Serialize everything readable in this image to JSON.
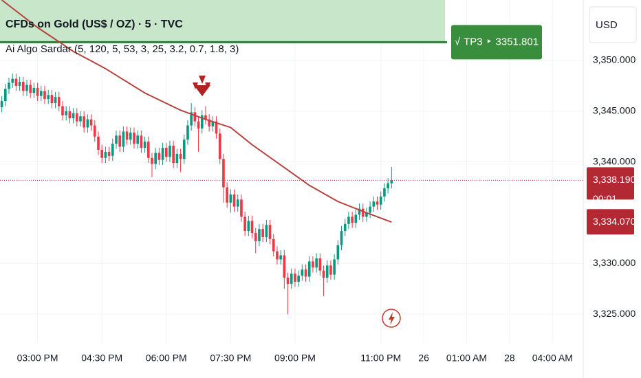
{
  "chart_data": {
    "type": "candlestick",
    "title": "CFDs on Gold (US$ / OZ) · 5 · TVC",
    "indicator": "Ai Algo Sardar (5, 120, 5, 53, 3, 25, 3.2, 0.7, 1.8, 3)",
    "currency": "USD",
    "up_color": "#089981",
    "down_color": "#f23645",
    "xlim": [
      -0.5,
      162.6
    ],
    "ylim": [
      3322.1,
      3355.96
    ],
    "xticks": [
      {
        "value": 10,
        "label": "03:00 PM"
      },
      {
        "value": 28,
        "label": "04:30 PM"
      },
      {
        "value": 46,
        "label": "06:00 PM"
      },
      {
        "value": 64,
        "label": "07:30 PM"
      },
      {
        "value": 82,
        "label": "09:00 PM"
      },
      {
        "value": 106,
        "label": "11:00 PM"
      },
      {
        "value": 118,
        "label": "26"
      },
      {
        "value": 130,
        "label": "01:00 AM"
      },
      {
        "value": 142,
        "label": "28"
      },
      {
        "value": 154,
        "label": "04:00 AM"
      }
    ],
    "yticks": [
      {
        "value": 3325,
        "label": "3,325.000"
      },
      {
        "value": 3330,
        "label": "3,330.000"
      },
      {
        "value": 3340,
        "label": "3,340.000"
      },
      {
        "value": 3345,
        "label": "3,345.000"
      },
      {
        "value": 3350,
        "label": "3,350.000"
      }
    ],
    "open": [
      3345.4,
      3346.0,
      3347.2,
      3347.8,
      3348.2,
      3347.5,
      3347.9,
      3347.0,
      3347.6,
      3346.8,
      3347.3,
      3346.5,
      3347.0,
      3346.2,
      3346.6,
      3345.8,
      3346.4,
      3345.5,
      3344.6,
      3345.0,
      3344.3,
      3344.8,
      3344.0,
      3344.5,
      3343.4,
      3344.2,
      3343.6,
      3342.5,
      3341.2,
      3340.4,
      3341.0,
      3340.6,
      3341.8,
      3342.6,
      3341.5,
      3343.0,
      3342.2,
      3342.9,
      3341.8,
      3342.6,
      3341.4,
      3342.0,
      3340.4,
      3339.8,
      3340.9,
      3340.2,
      3341.4,
      3340.5,
      3341.6,
      3339.9,
      3340.8,
      3340.3,
      3342.2,
      3343.6,
      3344.9,
      3344.0,
      3343.3,
      3344.6,
      3344.2,
      3343.5,
      3344.0,
      3342.8,
      3340.3,
      3337.5,
      3336.0,
      3336.8,
      3335.6,
      3336.3,
      3334.6,
      3333.2,
      3334.2,
      3333.0,
      3332.2,
      3333.4,
      3332.6,
      3333.8,
      3332.4,
      3331.2,
      3330.4,
      3330.8,
      3328.6,
      3328.0,
      3329.0,
      3328.2,
      3328.8,
      3329.4,
      3328.7,
      3330.2,
      3329.6,
      3330.5,
      3329.3,
      3328.6,
      3329.8,
      3328.9,
      3330.4,
      3331.8,
      3333.2,
      3333.9,
      3334.6,
      3334.0,
      3334.8,
      3335.4,
      3334.6,
      3335.0,
      3335.6,
      3336.1,
      3335.8,
      3336.6,
      3337.4,
      3337.9
    ],
    "high": [
      3346.5,
      3347.7,
      3348.3,
      3348.7,
      3348.7,
      3348.4,
      3348.4,
      3348.1,
      3348.1,
      3347.8,
      3347.8,
      3347.5,
      3347.5,
      3347.1,
      3347.1,
      3346.9,
      3346.9,
      3346.0,
      3345.5,
      3345.5,
      3345.3,
      3345.3,
      3345.0,
      3345.0,
      3344.7,
      3344.7,
      3344.1,
      3343.0,
      3341.7,
      3341.5,
      3341.5,
      3342.3,
      3343.1,
      3343.1,
      3343.5,
      3343.5,
      3343.4,
      3343.4,
      3343.1,
      3343.1,
      3342.5,
      3342.5,
      3340.9,
      3341.4,
      3341.4,
      3341.9,
      3341.9,
      3342.1,
      3342.1,
      3341.3,
      3341.3,
      3342.7,
      3344.1,
      3345.8,
      3345.4,
      3344.5,
      3345.1,
      3345.5,
      3344.7,
      3344.5,
      3344.5,
      3343.3,
      3340.8,
      3338.0,
      3337.3,
      3337.3,
      3336.8,
      3336.8,
      3335.1,
      3334.7,
      3334.7,
      3333.5,
      3333.9,
      3333.9,
      3334.3,
      3334.3,
      3332.9,
      3331.7,
      3331.3,
      3331.3,
      3329.1,
      3329.5,
      3329.5,
      3329.3,
      3329.9,
      3329.9,
      3330.7,
      3330.7,
      3331.0,
      3331.0,
      3329.8,
      3330.3,
      3330.3,
      3330.9,
      3332.3,
      3333.7,
      3334.4,
      3335.1,
      3335.1,
      3335.3,
      3335.9,
      3335.9,
      3335.5,
      3336.1,
      3336.6,
      3336.6,
      3337.1,
      3337.9,
      3338.4,
      3339.5
    ],
    "low": [
      3344.9,
      3345.5,
      3346.7,
      3347.3,
      3347.0,
      3347.0,
      3346.5,
      3346.5,
      3346.3,
      3346.3,
      3346.0,
      3346.0,
      3345.7,
      3345.7,
      3345.3,
      3345.3,
      3345.0,
      3344.1,
      3344.1,
      3343.8,
      3343.8,
      3343.5,
      3343.5,
      3342.9,
      3342.9,
      3343.1,
      3342.0,
      3340.7,
      3339.9,
      3339.9,
      3340.1,
      3340.1,
      3341.3,
      3341.0,
      3341.0,
      3341.7,
      3341.7,
      3341.3,
      3341.3,
      3340.9,
      3340.9,
      3339.9,
      3338.5,
      3339.3,
      3339.7,
      3339.7,
      3340.0,
      3340.0,
      3339.4,
      3339.4,
      3339.0,
      3339.8,
      3341.7,
      3343.1,
      3343.5,
      3341.0,
      3342.8,
      3343.7,
      3343.0,
      3343.0,
      3342.3,
      3339.8,
      3336.0,
      3335.5,
      3335.0,
      3335.1,
      3335.1,
      3334.1,
      3332.7,
      3332.7,
      3332.5,
      3331.0,
      3331.7,
      3332.1,
      3332.1,
      3331.9,
      3330.7,
      3329.9,
      3329.9,
      3327.5,
      3325.0,
      3327.5,
      3327.7,
      3327.7,
      3328.3,
      3328.2,
      3328.2,
      3329.1,
      3329.1,
      3328.8,
      3326.8,
      3328.1,
      3328.4,
      3328.4,
      3329.9,
      3331.3,
      3332.7,
      3333.4,
      3333.5,
      3333.5,
      3334.3,
      3334.1,
      3334.1,
      3334.5,
      3335.1,
      3335.3,
      3335.3,
      3336.1,
      3336.9,
      3337.4
    ],
    "close": [
      3346.0,
      3347.2,
      3347.8,
      3348.2,
      3347.5,
      3347.9,
      3347.0,
      3347.6,
      3346.8,
      3347.3,
      3346.5,
      3347.0,
      3346.2,
      3346.6,
      3345.8,
      3346.4,
      3345.5,
      3344.6,
      3345.0,
      3344.3,
      3344.8,
      3344.0,
      3344.5,
      3343.4,
      3344.2,
      3343.6,
      3342.5,
      3341.2,
      3340.4,
      3341.0,
      3340.6,
      3341.8,
      3342.6,
      3341.5,
      3343.0,
      3342.2,
      3342.9,
      3341.8,
      3342.6,
      3341.4,
      3342.0,
      3340.4,
      3339.8,
      3340.9,
      3340.2,
      3341.4,
      3340.5,
      3341.6,
      3339.9,
      3340.8,
      3340.3,
      3342.2,
      3343.6,
      3344.9,
      3344.0,
      3343.3,
      3344.6,
      3344.2,
      3343.5,
      3344.0,
      3342.8,
      3340.3,
      3337.5,
      3336.0,
      3336.8,
      3335.6,
      3336.3,
      3334.6,
      3333.2,
      3334.2,
      3333.0,
      3332.2,
      3333.4,
      3332.6,
      3333.8,
      3332.4,
      3331.2,
      3330.4,
      3330.8,
      3328.6,
      3328.0,
      3329.0,
      3328.2,
      3328.8,
      3329.4,
      3328.7,
      3330.2,
      3329.6,
      3330.5,
      3329.3,
      3328.6,
      3329.8,
      3328.9,
      3330.4,
      3331.8,
      3333.2,
      3333.9,
      3334.6,
      3334.0,
      3334.8,
      3335.4,
      3334.6,
      3335.0,
      3335.6,
      3336.1,
      3335.8,
      3336.6,
      3337.4,
      3337.9,
      3338.19
    ],
    "ma": {
      "color": "#b5443f",
      "x": [
        0,
        10,
        20,
        29,
        40,
        50,
        57,
        64,
        70,
        78,
        86,
        94,
        102,
        109
      ],
      "values": [
        3355.96,
        3353.25,
        3350.9,
        3349.2,
        3346.8,
        3345.1,
        3344.2,
        3343.4,
        3341.7,
        3339.7,
        3337.7,
        3336.1,
        3335.0,
        3334.07
      ]
    },
    "last_price_label": "3,338.190",
    "countdown": "00:01",
    "ma_last_label": "3,334.070",
    "target": {
      "check": "√",
      "name": "TP3",
      "arrow": "‣",
      "value": 3351.801
    }
  }
}
